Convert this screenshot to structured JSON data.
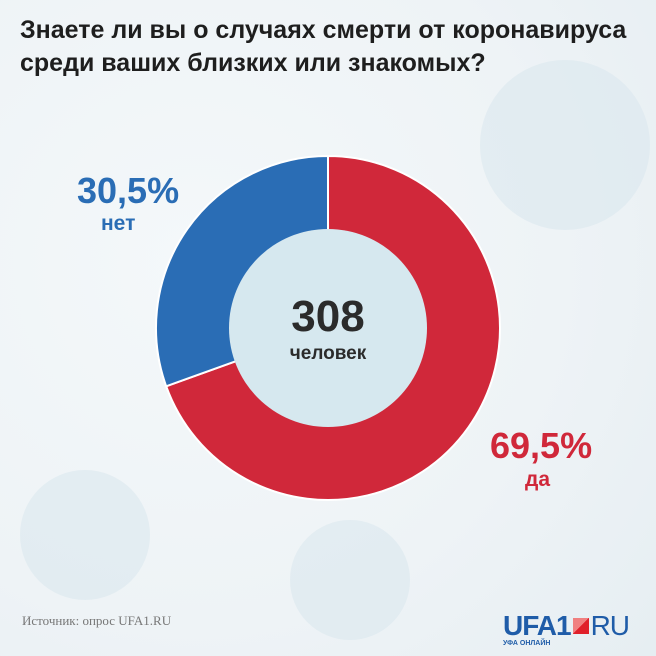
{
  "title": "Знаете ли вы о случаях смерти от коронавируса среди ваших близких или знакомых?",
  "center": {
    "value": "308",
    "label": "человек"
  },
  "source": "Источник: опрос UFA1.RU",
  "logo": {
    "main": "UFA1",
    "ru": "RU",
    "sub": "УФА ОНЛАЙН"
  },
  "chart_data": {
    "type": "pie",
    "title": "Знаете ли вы о случаях смерти от коронавируса среди ваших близких или знакомых?",
    "donut": true,
    "total_respondents": 308,
    "slices": [
      {
        "label": "да",
        "value": 69.5,
        "display": "69,5%",
        "color": "#d0283a"
      },
      {
        "label": "нет",
        "value": 30.5,
        "display": "30,5%",
        "color": "#2a6db5"
      }
    ]
  }
}
